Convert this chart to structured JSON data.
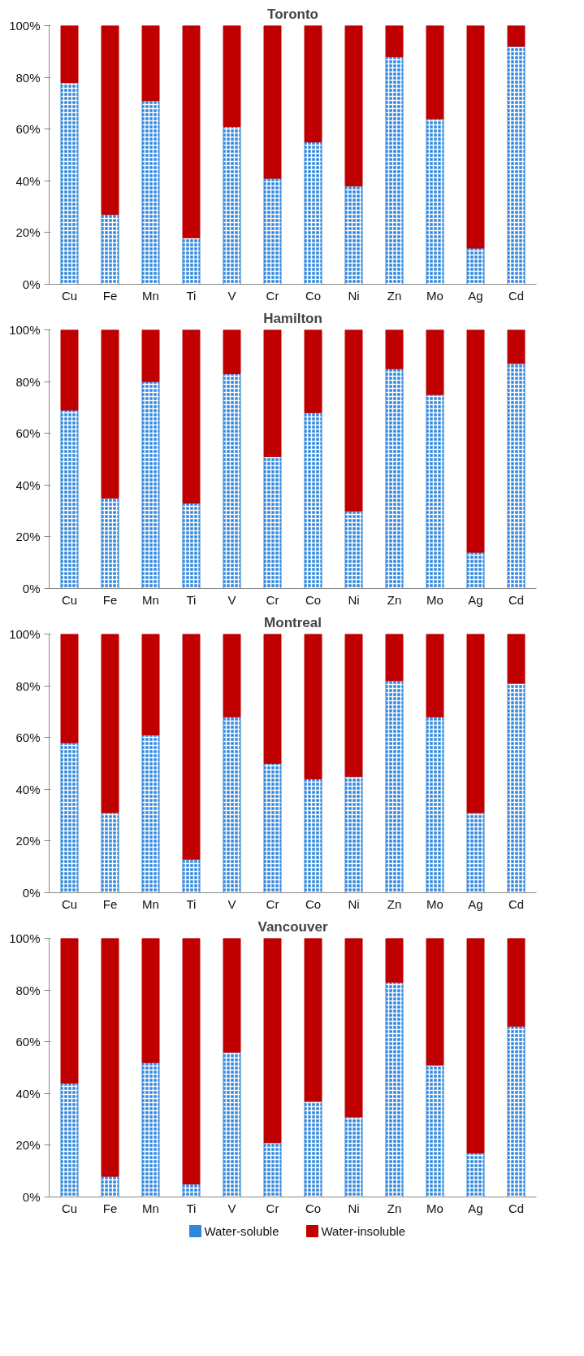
{
  "chart_data": [
    {
      "type": "bar",
      "title": "Toronto",
      "stacked": true,
      "categories": [
        "Cu",
        "Fe",
        "Mn",
        "Ti",
        "V",
        "Cr",
        "Co",
        "Ni",
        "Zn",
        "Mo",
        "Ag",
        "Cd"
      ],
      "ylim": [
        0,
        100
      ],
      "yticks": [
        {
          "value": 0,
          "label": "0%"
        },
        {
          "value": 20,
          "label": "20%"
        },
        {
          "value": 40,
          "label": "40%"
        },
        {
          "value": 60,
          "label": "60%"
        },
        {
          "value": 80,
          "label": "80%"
        },
        {
          "value": 100,
          "label": "100%"
        }
      ],
      "grid": false,
      "legend": false,
      "series": [
        {
          "color": "#2e86de",
          "values": [
            78,
            27,
            71,
            18,
            61,
            41,
            55,
            38,
            88,
            64,
            14,
            92
          ]
        },
        {
          "color": "#c00000",
          "values": [
            22,
            73,
            29,
            82,
            39,
            59,
            45,
            62,
            12,
            36,
            86,
            8
          ]
        }
      ]
    },
    {
      "type": "bar",
      "title": "Hamilton",
      "stacked": true,
      "categories": [
        "Cu",
        "Fe",
        "Mn",
        "Ti",
        "V",
        "Cr",
        "Co",
        "Ni",
        "Zn",
        "Mo",
        "Ag",
        "Cd"
      ],
      "ylim": [
        0,
        100
      ],
      "yticks": [
        {
          "value": 0,
          "label": "0%"
        },
        {
          "value": 20,
          "label": "20%"
        },
        {
          "value": 40,
          "label": "40%"
        },
        {
          "value": 60,
          "label": "60%"
        },
        {
          "value": 80,
          "label": "80%"
        },
        {
          "value": 100,
          "label": "100%"
        }
      ],
      "grid": false,
      "legend": false,
      "series": [
        {
          "color": "#2e86de",
          "values": [
            69,
            35,
            80,
            33,
            83,
            51,
            68,
            30,
            85,
            75,
            14,
            87
          ]
        },
        {
          "color": "#c00000",
          "values": [
            31,
            65,
            20,
            67,
            17,
            49,
            32,
            70,
            15,
            25,
            86,
            13
          ]
        }
      ]
    },
    {
      "type": "bar",
      "title": "Montreal",
      "stacked": true,
      "categories": [
        "Cu",
        "Fe",
        "Mn",
        "Ti",
        "V",
        "Cr",
        "Co",
        "Ni",
        "Zn",
        "Mo",
        "Ag",
        "Cd"
      ],
      "ylim": [
        0,
        100
      ],
      "yticks": [
        {
          "value": 0,
          "label": "0%"
        },
        {
          "value": 20,
          "label": "20%"
        },
        {
          "value": 40,
          "label": "40%"
        },
        {
          "value": 60,
          "label": "60%"
        },
        {
          "value": 80,
          "label": "80%"
        },
        {
          "value": 100,
          "label": "100%"
        }
      ],
      "grid": false,
      "legend": false,
      "series": [
        {
          "color": "#2e86de",
          "values": [
            58,
            31,
            61,
            13,
            68,
            50,
            44,
            45,
            82,
            68,
            31,
            81
          ]
        },
        {
          "color": "#c00000",
          "values": [
            42,
            69,
            39,
            87,
            32,
            50,
            56,
            55,
            18,
            32,
            69,
            19
          ]
        }
      ]
    },
    {
      "type": "bar",
      "title": "Vancouver",
      "stacked": true,
      "categories": [
        "Cu",
        "Fe",
        "Mn",
        "Ti",
        "V",
        "Cr",
        "Co",
        "Ni",
        "Zn",
        "Mo",
        "Ag",
        "Cd"
      ],
      "ylim": [
        0,
        100
      ],
      "yticks": [
        {
          "value": 0,
          "label": "0%"
        },
        {
          "value": 20,
          "label": "20%"
        },
        {
          "value": 40,
          "label": "40%"
        },
        {
          "value": 60,
          "label": "60%"
        },
        {
          "value": 80,
          "label": "80%"
        },
        {
          "value": 100,
          "label": "100%"
        }
      ],
      "grid": false,
      "legend": "bottom",
      "series": [
        {
          "name": "Water-soluble",
          "color": "#2e86de",
          "values": [
            44,
            8,
            52,
            5,
            56,
            21,
            37,
            31,
            83,
            51,
            17,
            66
          ]
        },
        {
          "name": "Water-insoluble",
          "color": "#c00000",
          "values": [
            56,
            92,
            48,
            95,
            44,
            79,
            63,
            69,
            17,
            49,
            83,
            34
          ]
        }
      ]
    }
  ]
}
